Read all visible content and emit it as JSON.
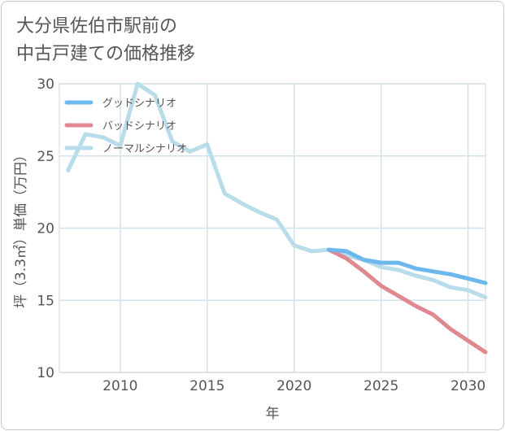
{
  "title_line1": "大分県佐伯市駅前の",
  "title_line2": "中古戸建ての価格推移",
  "chart_data": {
    "type": "line",
    "xlabel": "年",
    "ylabel": "坪（3.3㎡）単価（万円）",
    "xlim": [
      2006.5,
      2031
    ],
    "ylim": [
      10,
      30
    ],
    "x_ticks": [
      2010,
      2015,
      2020,
      2025,
      2030
    ],
    "y_ticks": [
      10,
      15,
      20,
      25,
      30
    ],
    "grid": true,
    "legend_position": "top-left",
    "series": [
      {
        "name": "グッドシナリオ",
        "color": "#6cb8ec",
        "x": [
          2022,
          2023,
          2024,
          2025,
          2026,
          2027,
          2028,
          2029,
          2030,
          2031
        ],
        "values": [
          18.5,
          18.4,
          17.8,
          17.6,
          17.6,
          17.2,
          17.0,
          16.8,
          16.5,
          16.2
        ]
      },
      {
        "name": "バッドシナリオ",
        "color": "#e08890",
        "x": [
          2022,
          2023,
          2024,
          2025,
          2026,
          2027,
          2028,
          2029,
          2030,
          2031
        ],
        "values": [
          18.5,
          17.9,
          17.0,
          16.0,
          15.3,
          14.6,
          14.0,
          13.0,
          12.2,
          11.4
        ]
      },
      {
        "name": "ノーマルシナリオ",
        "color": "#b8dcea",
        "x": [
          2007,
          2008,
          2009,
          2010,
          2011,
          2012,
          2013,
          2014,
          2015,
          2016,
          2017,
          2018,
          2019,
          2020,
          2021,
          2022,
          2023,
          2024,
          2025,
          2026,
          2027,
          2028,
          2029,
          2030,
          2031
        ],
        "values": [
          24.0,
          26.5,
          26.3,
          25.7,
          30.0,
          29.2,
          26.0,
          25.3,
          25.8,
          22.4,
          21.7,
          21.1,
          20.6,
          18.8,
          18.4,
          18.5,
          18.1,
          17.8,
          17.3,
          17.1,
          16.7,
          16.4,
          15.9,
          15.7,
          15.2
        ]
      }
    ]
  }
}
